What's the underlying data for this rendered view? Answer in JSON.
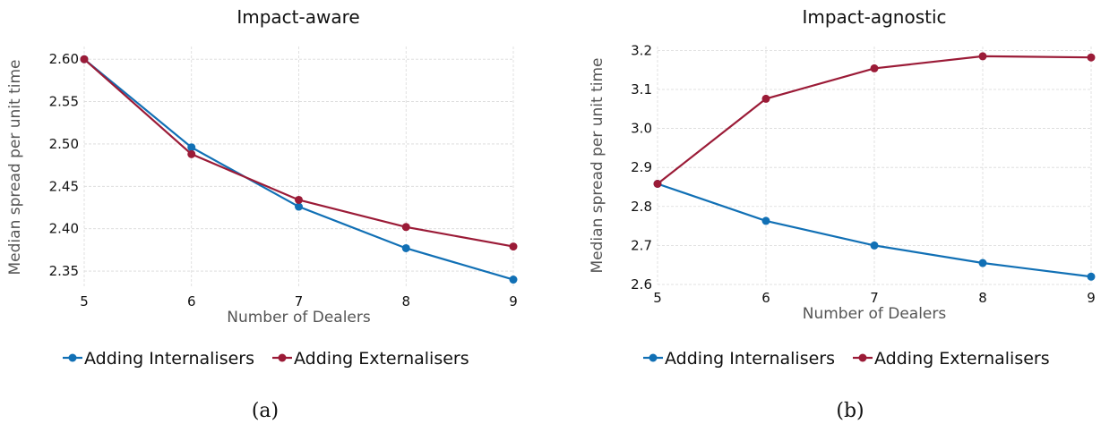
{
  "colors": {
    "internalisers": "#1170b5",
    "externalisers": "#9b1b37"
  },
  "chart_data": [
    {
      "type": "line",
      "title": "Impact-aware",
      "xlabel": "Number of Dealers",
      "ylabel": "Median spread per unit time",
      "x": [
        5,
        6,
        7,
        8,
        9
      ],
      "xticks": [
        "5",
        "6",
        "7",
        "8",
        "9"
      ],
      "yticks": [
        "2.35",
        "2.40",
        "2.45",
        "2.50",
        "2.55",
        "2.60"
      ],
      "ylim": [
        2.33,
        2.615
      ],
      "xlim": [
        5,
        9
      ],
      "grid": true,
      "series": [
        {
          "name": "Adding Internalisers",
          "values": [
            2.6,
            2.496,
            2.426,
            2.377,
            2.34
          ]
        },
        {
          "name": "Adding Externalisers",
          "values": [
            2.6,
            2.488,
            2.434,
            2.402,
            2.379
          ]
        }
      ],
      "legend": "bottom-center",
      "caption": "(a)"
    },
    {
      "type": "line",
      "title": "Impact-agnostic",
      "xlabel": "Number of Dealers",
      "ylabel": "Median spread per unit time",
      "x": [
        5,
        6,
        7,
        8,
        9
      ],
      "xticks": [
        "5",
        "6",
        "7",
        "8",
        "9"
      ],
      "yticks": [
        "2.6",
        "2.7",
        "2.8",
        "2.9",
        "3.0",
        "3.1",
        "3.2"
      ],
      "ylim": [
        2.6,
        3.21
      ],
      "xlim": [
        5,
        9
      ],
      "grid": true,
      "series": [
        {
          "name": "Adding Internalisers",
          "values": [
            2.858,
            2.763,
            2.7,
            2.655,
            2.62
          ]
        },
        {
          "name": "Adding Externalisers",
          "values": [
            2.858,
            3.076,
            3.154,
            3.185,
            3.182
          ]
        }
      ],
      "legend": "bottom-center",
      "caption": "(b)"
    }
  ]
}
